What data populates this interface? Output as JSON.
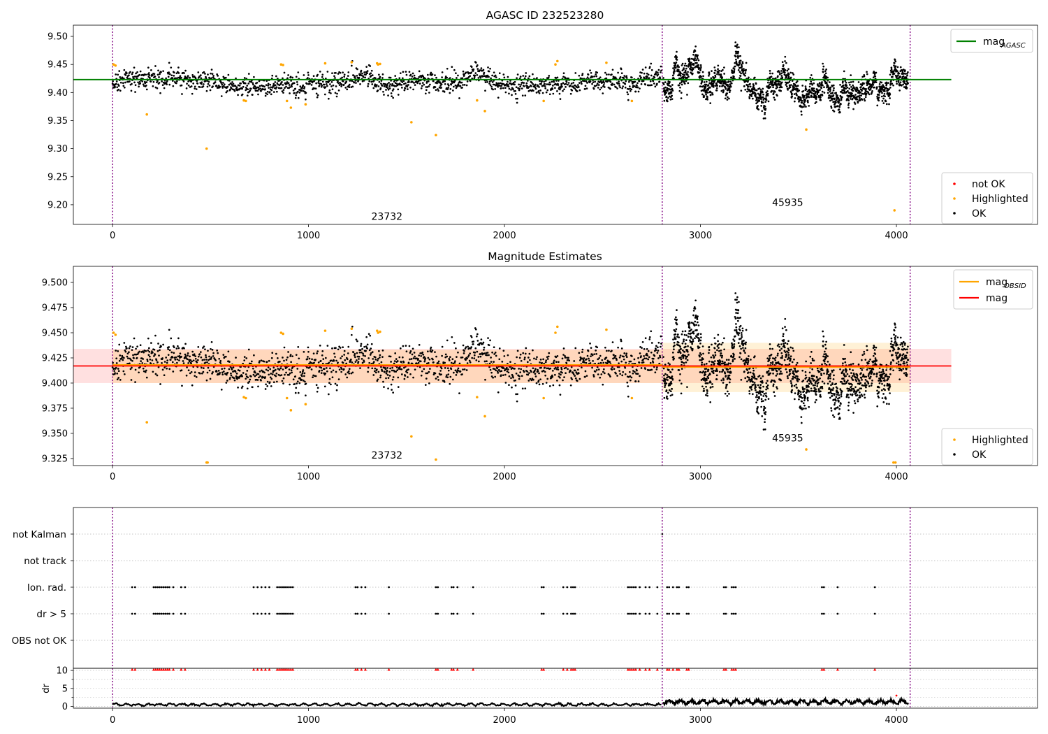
{
  "chart_data": [
    {
      "type": "scatter",
      "title": "AGASC ID 232523280",
      "xlim": [
        -200,
        4720
      ],
      "ylim": [
        9.165,
        9.52
      ],
      "xticks": [
        0,
        1000,
        2000,
        3000,
        4000
      ],
      "yticks": [
        9.2,
        9.25,
        9.3,
        9.35,
        9.4,
        9.45,
        9.5
      ],
      "ytick_decimals": 2,
      "obsid_boundaries": [
        0,
        2805,
        4070
      ],
      "obsid_labels": [
        {
          "text": "23732",
          "x": 1400,
          "y": 9.173
        },
        {
          "text": "45935",
          "x": 3445,
          "y": 9.198
        }
      ],
      "reference_line": {
        "name": "mag_AGASC",
        "y": 9.423,
        "x_range": [
          -200,
          4280
        ],
        "color": "#008000"
      },
      "segments": [
        {
          "x0": 0,
          "x1": 2800,
          "baseline": 9.418,
          "wander": 0.007,
          "noise": 0.009,
          "burst": 0.0
        },
        {
          "x0": 2810,
          "x1": 4060,
          "baseline": 9.415,
          "wander": 0.02,
          "noise": 0.01,
          "burst": 0.018
        }
      ],
      "ok_point_count": 3100,
      "highlighted_points": [
        [
          5,
          9.45
        ],
        [
          15,
          9.448
        ],
        [
          175,
          9.361
        ],
        [
          480,
          9.3
        ],
        [
          670,
          9.386
        ],
        [
          680,
          9.385
        ],
        [
          860,
          9.45
        ],
        [
          870,
          9.449
        ],
        [
          890,
          9.385
        ],
        [
          910,
          9.373
        ],
        [
          985,
          9.379
        ],
        [
          1085,
          9.452
        ],
        [
          1220,
          9.454
        ],
        [
          1350,
          9.452
        ],
        [
          1355,
          9.45
        ],
        [
          1365,
          9.451
        ],
        [
          1525,
          9.347
        ],
        [
          1650,
          9.324
        ],
        [
          1860,
          9.386
        ],
        [
          1900,
          9.367
        ],
        [
          2200,
          9.385
        ],
        [
          2260,
          9.45
        ],
        [
          2270,
          9.456
        ],
        [
          2520,
          9.453
        ],
        [
          2650,
          9.385
        ],
        [
          3540,
          9.334
        ],
        [
          3990,
          9.19
        ]
      ],
      "not_ok_points": [],
      "legends": {
        "lines": [
          {
            "label": "mag",
            "sub": "AGASC",
            "color": "#008000"
          }
        ],
        "points": [
          {
            "label": "not OK",
            "color": "#ff0000"
          },
          {
            "label": "Highlighted",
            "color": "#ffa500"
          },
          {
            "label": "OK",
            "color": "#000000"
          }
        ]
      }
    },
    {
      "type": "scatter",
      "title": "Magnitude Estimates",
      "xlim": [
        -200,
        4720
      ],
      "ylim": [
        9.318,
        9.516
      ],
      "xticks": [
        0,
        1000,
        2000,
        3000,
        4000
      ],
      "yticks": [
        9.325,
        9.35,
        9.375,
        9.4,
        9.425,
        9.45,
        9.475,
        9.5
      ],
      "ytick_decimals": 3,
      "obsid_boundaries": [
        0,
        2805,
        4070
      ],
      "obsid_labels": [
        {
          "text": "23732",
          "x": 1400,
          "y": 9.325
        },
        {
          "text": "45935",
          "x": 3445,
          "y": 9.342
        }
      ],
      "mag_line": {
        "name": "mag",
        "y": 9.417,
        "band": [
          9.4,
          9.434
        ],
        "x_range": [
          -200,
          4280
        ],
        "color": "#ff0000"
      },
      "mag_obsid": [
        {
          "x0": 0,
          "x1": 2805,
          "y": 9.418,
          "band": [
            9.4,
            9.433
          ]
        },
        {
          "x0": 2805,
          "x1": 4070,
          "y": 9.416,
          "band": [
            9.391,
            9.44
          ]
        }
      ],
      "segments": [
        {
          "x0": 0,
          "x1": 2800,
          "baseline": 9.418,
          "wander": 0.007,
          "noise": 0.009,
          "burst": 0.0
        },
        {
          "x0": 2810,
          "x1": 4060,
          "baseline": 9.415,
          "wander": 0.02,
          "noise": 0.01,
          "burst": 0.018
        }
      ],
      "ok_point_count": 3100,
      "highlighted_points": [
        [
          5,
          9.45
        ],
        [
          15,
          9.448
        ],
        [
          175,
          9.361
        ],
        [
          480,
          9.321
        ],
        [
          485,
          9.321
        ],
        [
          670,
          9.386
        ],
        [
          680,
          9.385
        ],
        [
          860,
          9.45
        ],
        [
          870,
          9.449
        ],
        [
          890,
          9.385
        ],
        [
          910,
          9.373
        ],
        [
          985,
          9.379
        ],
        [
          1085,
          9.452
        ],
        [
          1220,
          9.454
        ],
        [
          1350,
          9.452
        ],
        [
          1355,
          9.45
        ],
        [
          1365,
          9.451
        ],
        [
          1525,
          9.347
        ],
        [
          1650,
          9.324
        ],
        [
          1860,
          9.386
        ],
        [
          1900,
          9.367
        ],
        [
          2200,
          9.385
        ],
        [
          2260,
          9.45
        ],
        [
          2270,
          9.456
        ],
        [
          2520,
          9.453
        ],
        [
          2650,
          9.385
        ],
        [
          3540,
          9.334
        ],
        [
          3985,
          9.321
        ],
        [
          3995,
          9.321
        ]
      ],
      "legends": {
        "lines": [
          {
            "label": "mag",
            "sub": "OBSID",
            "color": "#ffa500"
          },
          {
            "label": "mag",
            "sub": "",
            "color": "#ff0000"
          }
        ],
        "points": [
          {
            "label": "Highlighted",
            "color": "#ffa500"
          },
          {
            "label": "OK",
            "color": "#000000"
          }
        ]
      }
    },
    {
      "type": "scatter",
      "title": "",
      "xlim": [
        -200,
        4720
      ],
      "flag_rows": [
        "not Kalman",
        "not track",
        "Ion. rad.",
        "dr > 5",
        "OBS not OK"
      ],
      "flag_times": [
        100,
        115,
        210,
        220,
        230,
        240,
        250,
        260,
        270,
        280,
        290,
        310,
        350,
        370,
        720,
        740,
        760,
        780,
        800,
        840,
        850,
        860,
        870,
        880,
        890,
        900,
        910,
        920,
        1240,
        1250,
        1270,
        1290,
        1410,
        1650,
        1660,
        1730,
        1740,
        1760,
        1840,
        2190,
        2200,
        2300,
        2320,
        2340,
        2350,
        2360,
        2630,
        2640,
        2650,
        2660,
        2670,
        2690,
        2720,
        2740,
        2780,
        2830,
        2840,
        2860,
        2880,
        2890,
        2930,
        2940,
        3120,
        3130,
        3160,
        3170,
        3180,
        3620,
        3630,
        3700,
        3890
      ],
      "not_kalman_times": [
        2805
      ],
      "dr": {
        "ylabel": "dr",
        "ylim": [
          -0.5,
          10.6
        ],
        "yticks": [
          0,
          5,
          10
        ],
        "threshold": 10.3,
        "segments": [
          {
            "x0": 0,
            "x1": 2800,
            "level": 0.5,
            "wiggle": 0.25
          },
          {
            "x0": 2810,
            "x1": 4060,
            "level": 1.2,
            "wiggle": 0.45
          }
        ],
        "outliers": [
          [
            4000,
            3.0
          ]
        ]
      },
      "xticks": [
        0,
        1000,
        2000,
        3000,
        4000
      ]
    }
  ]
}
